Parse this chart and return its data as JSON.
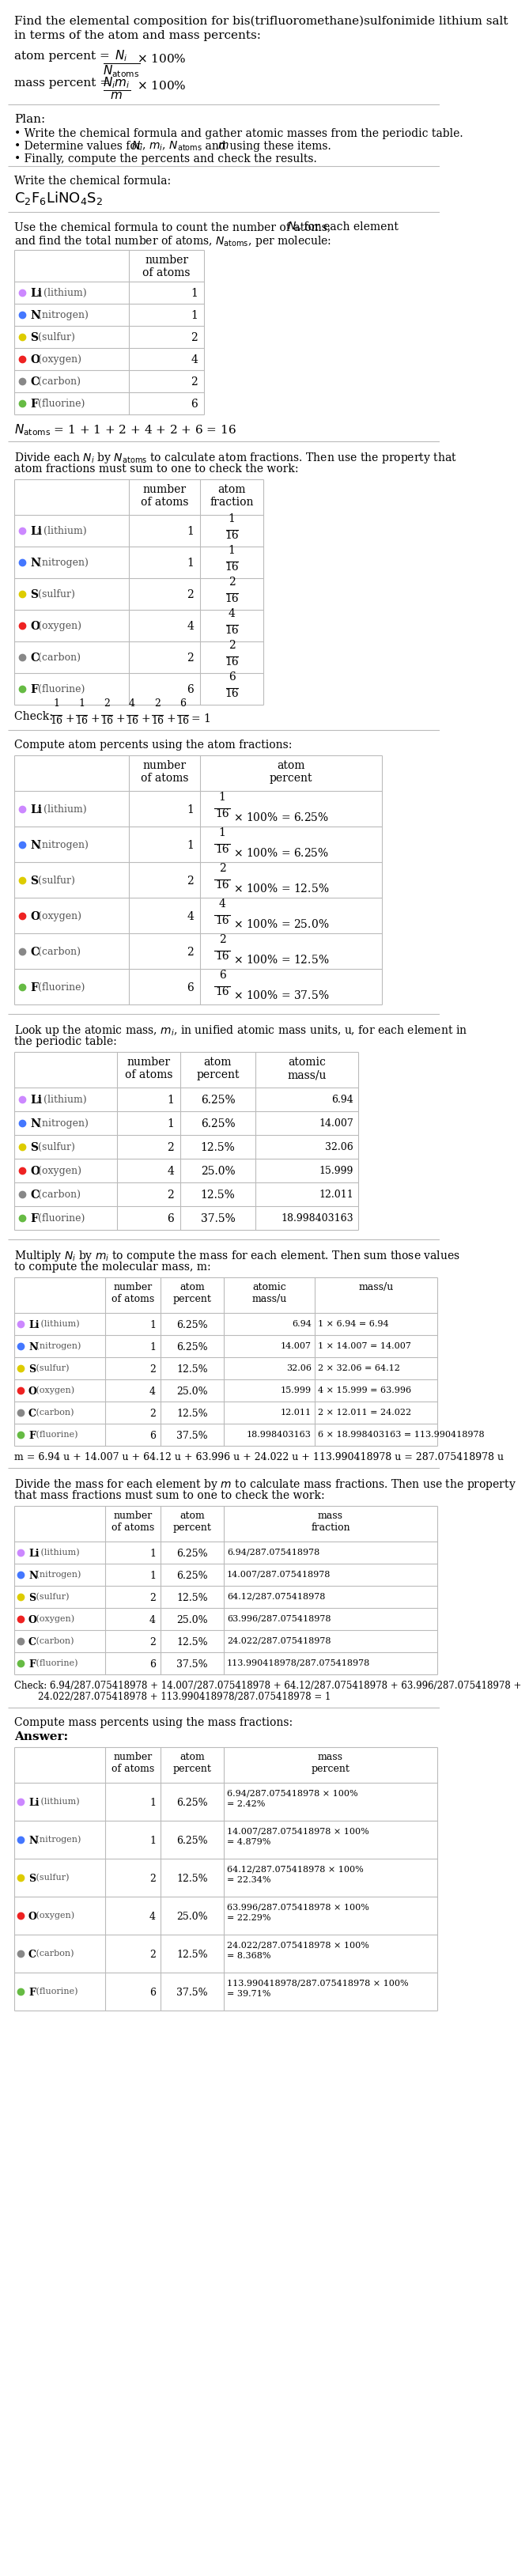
{
  "title_line1": "Find the elemental composition for bis(trifluoromethane)sulfonimide lithium salt",
  "title_line2": "in terms of the atom and mass percents:",
  "elements": [
    "Li (lithium)",
    "N (nitrogen)",
    "S (sulfur)",
    "O (oxygen)",
    "C (carbon)",
    "F (fluorine)"
  ],
  "element_colors": [
    "#cc88ff",
    "#4477ff",
    "#ddcc00",
    "#ee2222",
    "#888888",
    "#66bb44"
  ],
  "n_atoms": [
    1,
    1,
    2,
    4,
    2,
    6
  ],
  "atom_fractions_num": [
    "1",
    "1",
    "2",
    "4",
    "2",
    "6"
  ],
  "atom_percents": [
    "6.25%",
    "6.25%",
    "12.5%",
    "25.0%",
    "12.5%",
    "37.5%"
  ],
  "atomic_masses_full": [
    "6.94",
    "14.007",
    "32.06",
    "15.999",
    "12.011",
    "18.998403163"
  ],
  "mass_calcs": [
    "1 × 6.94 = 6.94",
    "1 × 14.007 = 14.007",
    "2 × 32.06 = 64.12",
    "4 × 15.999 = 63.996",
    "2 × 12.011 = 24.022",
    "6 × 18.998403163 = 113.990418978"
  ],
  "mass_values": [
    "6.94",
    "14.007",
    "64.12",
    "63.996",
    "24.022",
    "113.990418978"
  ],
  "mass_fractions_num": [
    "6.94",
    "14.007",
    "64.12",
    "63.996",
    "24.022",
    "113.990418978"
  ],
  "mass_percents": [
    "2.42%",
    "4.879%",
    "22.34%",
    "22.29%",
    "8.368%",
    "39.71%"
  ],
  "bg_color": "#ffffff"
}
